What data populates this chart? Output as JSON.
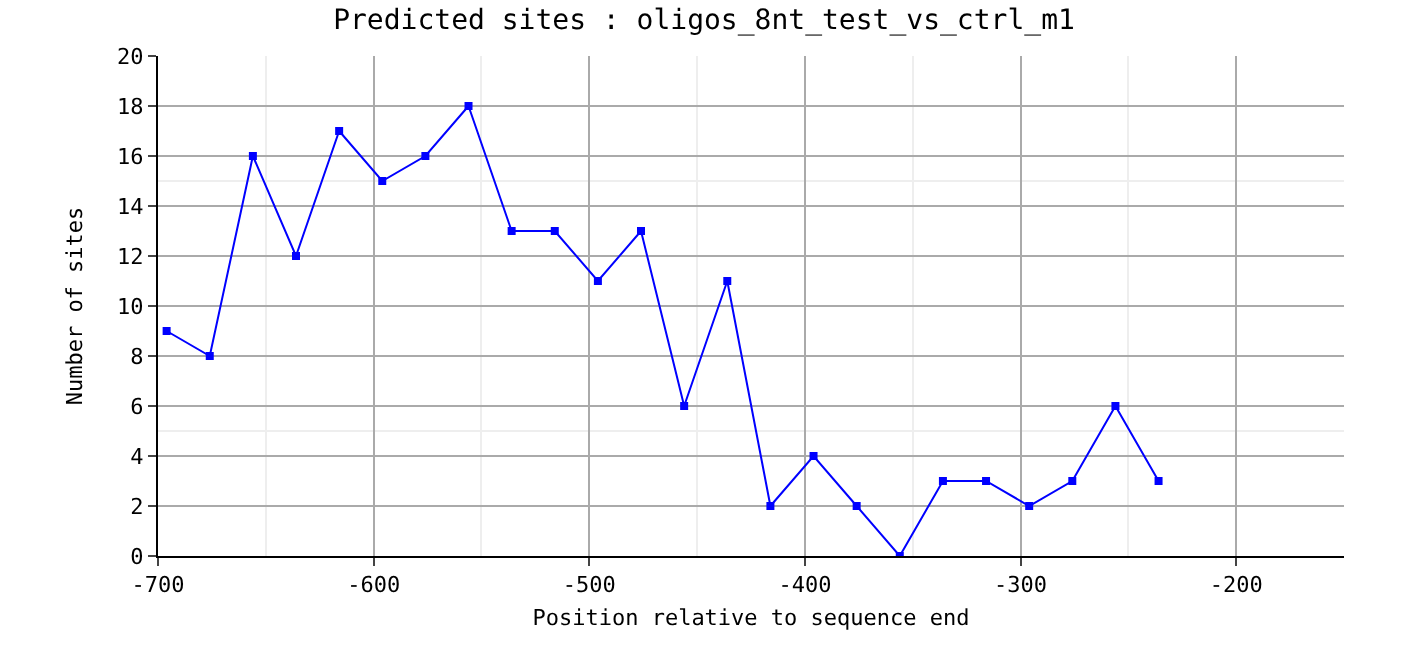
{
  "chart_data": {
    "type": "line",
    "title": "Predicted sites : oligos_8nt_test_vs_ctrl_m1",
    "xlabel": "Position relative to sequence end",
    "ylabel": "Number of sites",
    "x": [
      -696,
      -676,
      -656,
      -636,
      -616,
      -596,
      -576,
      -556,
      -536,
      -516,
      -496,
      -476,
      -456,
      -436,
      -416,
      -396,
      -376,
      -356,
      -336,
      -316,
      -296,
      -276,
      -256,
      -236
    ],
    "series": [
      {
        "color": "#0000ff",
        "values": [
          9,
          8,
          16,
          12,
          17,
          15,
          16,
          18,
          13,
          13,
          11,
          13,
          6,
          11,
          2,
          4,
          2,
          0,
          3,
          3,
          2,
          3,
          6,
          3
        ]
      }
    ],
    "xlim": [
      -700,
      -150
    ],
    "xticks": [
      -700,
      -600,
      -500,
      -400,
      -300,
      -200
    ],
    "ylim": [
      0,
      20
    ],
    "yticks": [
      0,
      2,
      4,
      6,
      8,
      10,
      12,
      14,
      16,
      18,
      20
    ],
    "grid": true,
    "marker": "square",
    "line_style": "solid"
  }
}
